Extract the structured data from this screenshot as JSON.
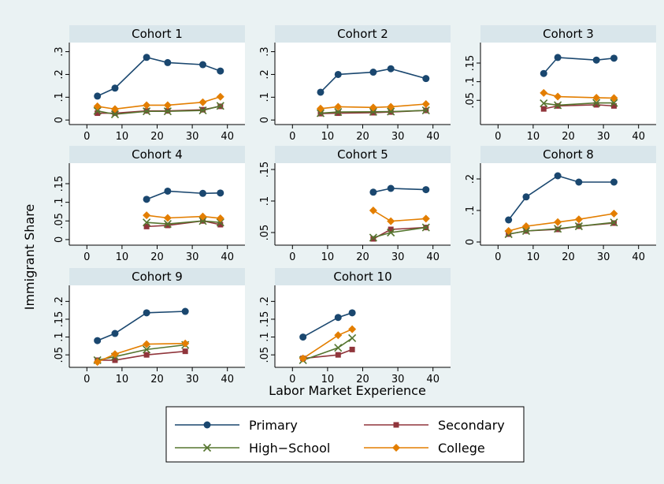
{
  "chart_data": {
    "type": "line",
    "xlabel": "Labor Market Experience",
    "ylabel": "Immigrant Share",
    "xlim": [
      -5,
      45
    ],
    "xticks": [
      0,
      10,
      20,
      30,
      40
    ],
    "grid": false,
    "legend_placement": "bottom",
    "legend": [
      {
        "key": "primary",
        "label": "Primary",
        "color": "#1a476f",
        "marker": "circle"
      },
      {
        "key": "secondary",
        "label": "Secondary",
        "color": "#90353b",
        "marker": "square"
      },
      {
        "key": "highschool",
        "label": "High−School",
        "color": "#55752f",
        "marker": "x"
      },
      {
        "key": "college",
        "label": "College",
        "color": "#e37e00",
        "marker": "diamond"
      }
    ],
    "panels": [
      {
        "title": "Cohort 1",
        "ylim": [
          -0.02,
          0.34
        ],
        "yticks": [
          {
            "v": 0,
            "label": "0"
          },
          {
            "v": 0.1,
            "label": ".1"
          },
          {
            "v": 0.2,
            "label": ".2"
          },
          {
            "v": 0.3,
            "label": ".3"
          }
        ],
        "series": [
          {
            "key": "primary",
            "x": [
              3,
              8,
              17,
              23,
              33,
              38
            ],
            "y": [
              0.105,
              0.14,
              0.275,
              0.252,
              0.243,
              0.215
            ]
          },
          {
            "key": "secondary",
            "x": [
              3,
              8,
              17,
              23,
              33,
              38
            ],
            "y": [
              0.03,
              0.03,
              0.04,
              0.04,
              0.045,
              0.06
            ]
          },
          {
            "key": "highschool",
            "x": [
              3,
              8,
              17,
              23,
              33,
              38
            ],
            "y": [
              0.04,
              0.025,
              0.038,
              0.038,
              0.042,
              0.062
            ]
          },
          {
            "key": "college",
            "x": [
              3,
              8,
              17,
              23,
              33,
              38
            ],
            "y": [
              0.06,
              0.048,
              0.065,
              0.065,
              0.078,
              0.102
            ]
          }
        ]
      },
      {
        "title": "Cohort 2",
        "ylim": [
          -0.02,
          0.34
        ],
        "yticks": [
          {
            "v": 0,
            "label": "0"
          },
          {
            "v": 0.1,
            "label": ".1"
          },
          {
            "v": 0.2,
            "label": ".2"
          },
          {
            "v": 0.3,
            "label": ".3"
          }
        ],
        "series": [
          {
            "key": "primary",
            "x": [
              8,
              13,
              23,
              28,
              38
            ],
            "y": [
              0.122,
              0.2,
              0.21,
              0.225,
              0.182
            ]
          },
          {
            "key": "secondary",
            "x": [
              8,
              13,
              23,
              28,
              38
            ],
            "y": [
              0.028,
              0.03,
              0.032,
              0.035,
              0.042
            ]
          },
          {
            "key": "highschool",
            "x": [
              8,
              13,
              23,
              28,
              38
            ],
            "y": [
              0.03,
              0.035,
              0.036,
              0.037,
              0.042
            ]
          },
          {
            "key": "college",
            "x": [
              8,
              13,
              23,
              28,
              38
            ],
            "y": [
              0.05,
              0.058,
              0.055,
              0.058,
              0.07
            ]
          }
        ]
      },
      {
        "title": "Cohort 3",
        "ylim": [
          -0.015,
          0.205
        ],
        "yticks": [
          {
            "v": 0.05,
            "label": ".05"
          },
          {
            "v": 0.1,
            "label": ".1"
          },
          {
            "v": 0.15,
            "label": ".15"
          }
        ],
        "series": [
          {
            "key": "primary",
            "x": [
              13,
              17,
              28,
              33
            ],
            "y": [
              0.122,
              0.165,
              0.158,
              0.163
            ]
          },
          {
            "key": "secondary",
            "x": [
              13,
              17,
              28,
              33
            ],
            "y": [
              0.027,
              0.035,
              0.038,
              0.035
            ]
          },
          {
            "key": "highschool",
            "x": [
              13,
              17,
              28,
              33
            ],
            "y": [
              0.042,
              0.037,
              0.043,
              0.043
            ]
          },
          {
            "key": "college",
            "x": [
              13,
              17,
              28,
              33
            ],
            "y": [
              0.07,
              0.06,
              0.057,
              0.056
            ]
          }
        ]
      },
      {
        "title": "Cohort 4",
        "ylim": [
          -0.015,
          0.205
        ],
        "yticks": [
          {
            "v": 0,
            "label": "0"
          },
          {
            "v": 0.05,
            "label": ".05"
          },
          {
            "v": 0.1,
            "label": ".1"
          },
          {
            "v": 0.15,
            "label": ".15"
          }
        ],
        "series": [
          {
            "key": "primary",
            "x": [
              17,
              23,
              33,
              38
            ],
            "y": [
              0.108,
              0.13,
              0.124,
              0.125
            ]
          },
          {
            "key": "secondary",
            "x": [
              17,
              23,
              33,
              38
            ],
            "y": [
              0.035,
              0.038,
              0.05,
              0.04
            ]
          },
          {
            "key": "highschool",
            "x": [
              17,
              23,
              33,
              38
            ],
            "y": [
              0.046,
              0.042,
              0.05,
              0.046
            ]
          },
          {
            "key": "college",
            "x": [
              17,
              23,
              33,
              38
            ],
            "y": [
              0.065,
              0.058,
              0.062,
              0.057
            ]
          }
        ]
      },
      {
        "title": "Cohort 5",
        "ylim": [
          0.03,
          0.16
        ],
        "yticks": [
          {
            "v": 0.05,
            "label": ".05"
          },
          {
            "v": 0.1,
            "label": ".1"
          },
          {
            "v": 0.15,
            "label": ".15"
          }
        ],
        "series": [
          {
            "key": "primary",
            "x": [
              23,
              28,
              38
            ],
            "y": [
              0.114,
              0.12,
              0.118
            ]
          },
          {
            "key": "secondary",
            "x": [
              23,
              28,
              38
            ],
            "y": [
              0.04,
              0.055,
              0.058
            ]
          },
          {
            "key": "highschool",
            "x": [
              23,
              28,
              38
            ],
            "y": [
              0.042,
              0.05,
              0.058
            ]
          },
          {
            "key": "college",
            "x": [
              23,
              28,
              38
            ],
            "y": [
              0.085,
              0.068,
              0.072
            ]
          }
        ]
      },
      {
        "title": "Cohort 8",
        "ylim": [
          -0.01,
          0.25
        ],
        "yticks": [
          {
            "v": 0,
            "label": "0"
          },
          {
            "v": 0.1,
            "label": ".1"
          },
          {
            "v": 0.2,
            "label": ".2"
          }
        ],
        "series": [
          {
            "key": "primary",
            "x": [
              3,
              8,
              17,
              23,
              33
            ],
            "y": [
              0.07,
              0.143,
              0.21,
              0.19,
              0.19
            ]
          },
          {
            "key": "secondary",
            "x": [
              3,
              8,
              17,
              23,
              33
            ],
            "y": [
              0.025,
              0.035,
              0.04,
              0.05,
              0.06
            ]
          },
          {
            "key": "highschool",
            "x": [
              3,
              8,
              17,
              23,
              33
            ],
            "y": [
              0.025,
              0.035,
              0.042,
              0.05,
              0.062
            ]
          },
          {
            "key": "college",
            "x": [
              3,
              8,
              17,
              23,
              33
            ],
            "y": [
              0.035,
              0.05,
              0.063,
              0.072,
              0.09
            ]
          }
        ]
      },
      {
        "title": "Cohort 9",
        "ylim": [
          0.015,
          0.245
        ],
        "yticks": [
          {
            "v": 0.05,
            "label": ".05"
          },
          {
            "v": 0.1,
            "label": ".1"
          },
          {
            "v": 0.15,
            "label": ".15"
          },
          {
            "v": 0.2,
            "label": ".2"
          }
        ],
        "series": [
          {
            "key": "primary",
            "x": [
              3,
              8,
              17,
              28
            ],
            "y": [
              0.09,
              0.11,
              0.168,
              0.172
            ]
          },
          {
            "key": "secondary",
            "x": [
              3,
              8,
              17,
              28
            ],
            "y": [
              0.035,
              0.035,
              0.05,
              0.06
            ]
          },
          {
            "key": "highschool",
            "x": [
              3,
              8,
              17,
              28
            ],
            "y": [
              0.035,
              0.045,
              0.065,
              0.078
            ]
          },
          {
            "key": "college",
            "x": [
              3,
              8,
              17,
              28
            ],
            "y": [
              0.03,
              0.052,
              0.08,
              0.082
            ]
          }
        ]
      },
      {
        "title": "Cohort 10",
        "ylim": [
          0.015,
          0.245
        ],
        "yticks": [
          {
            "v": 0.05,
            "label": ".05"
          },
          {
            "v": 0.1,
            "label": ".1"
          },
          {
            "v": 0.15,
            "label": ".15"
          },
          {
            "v": 0.2,
            "label": ".2"
          }
        ],
        "series": [
          {
            "key": "primary",
            "x": [
              3,
              13,
              17
            ],
            "y": [
              0.1,
              0.155,
              0.168
            ]
          },
          {
            "key": "secondary",
            "x": [
              3,
              13,
              17
            ],
            "y": [
              0.04,
              0.05,
              0.065
            ]
          },
          {
            "key": "highschool",
            "x": [
              3,
              13,
              17
            ],
            "y": [
              0.035,
              0.07,
              0.097
            ]
          },
          {
            "key": "college",
            "x": [
              3,
              13,
              17
            ],
            "y": [
              0.04,
              0.105,
              0.122
            ]
          }
        ]
      }
    ]
  }
}
